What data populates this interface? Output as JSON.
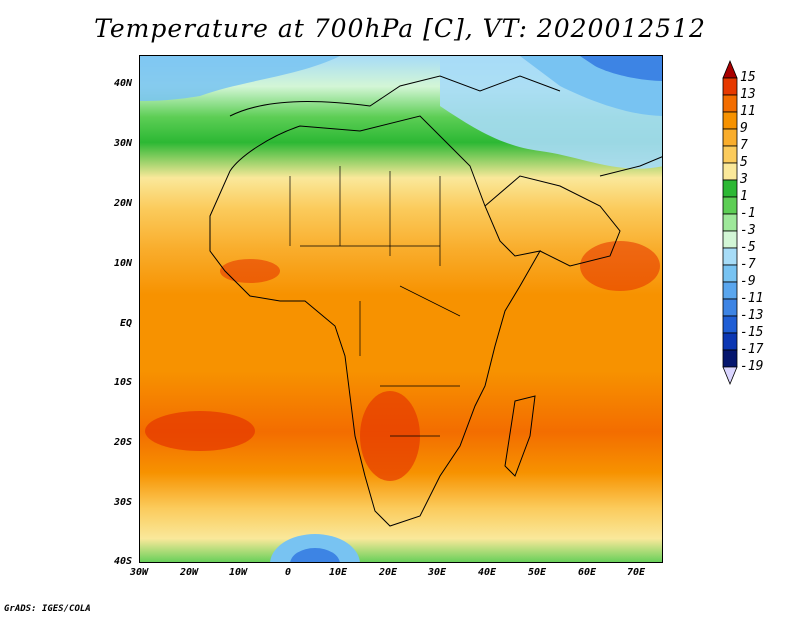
{
  "title": "Temperature at 700hPa [C], VT: 2020012512",
  "footer": "GrADS: IGES/COLA",
  "map": {
    "region": "Africa",
    "projection": "latlon",
    "lon_range": [
      "30W",
      "75E"
    ],
    "lat_range": [
      "40S",
      "45N"
    ],
    "y_ticks": [
      "40N",
      "30N",
      "20N",
      "10N",
      "EQ",
      "10S",
      "20S",
      "30S",
      "40S"
    ],
    "x_ticks": [
      "30W",
      "20W",
      "10W",
      "0",
      "10E",
      "20E",
      "30E",
      "40E",
      "50E",
      "60E",
      "70E"
    ]
  },
  "colorbar": {
    "labels": [
      "15",
      "13",
      "11",
      "9",
      "7",
      "5",
      "3",
      "1",
      "-1",
      "-3",
      "-5",
      "-7",
      "-9",
      "-11",
      "-13",
      "-15",
      "-17",
      "-19"
    ],
    "colors": [
      "#a80000",
      "#e63900",
      "#f36d00",
      "#f79200",
      "#f9ad2c",
      "#fbcb5c",
      "#fae89a",
      "#2cb834",
      "#5dce55",
      "#9ee89a",
      "#d3f6d6",
      "#a7dcf7",
      "#78c3f2",
      "#5aa6ee",
      "#3d84e4",
      "#1f5ed5",
      "#0c37b3",
      "#05166e",
      "#dad5ff"
    ]
  },
  "chart_data": {
    "type": "heatmap",
    "title": "Temperature at 700hPa [C], VT: 2020012512",
    "variable": "Temperature at 700hPa",
    "units": "C",
    "valid_time": "2020012512",
    "x_range": [
      -30,
      75
    ],
    "y_range": [
      -40,
      45
    ],
    "contour_levels": [
      -19,
      -17,
      -15,
      -13,
      -11,
      -9,
      -7,
      -5,
      -3,
      -1,
      1,
      3,
      5,
      7,
      9,
      11,
      13,
      15
    ],
    "approx_values_by_lat": [
      {
        "lat": 42,
        "value": -3
      },
      {
        "lat": 35,
        "value": 1
      },
      {
        "lat": 28,
        "value": 3
      },
      {
        "lat": 22,
        "value": 7
      },
      {
        "lat": 10,
        "value": 11
      },
      {
        "lat": 0,
        "value": 11
      },
      {
        "lat": -18,
        "value": 12
      },
      {
        "lat": -30,
        "value": 9
      },
      {
        "lat": -38,
        "value": 3
      }
    ]
  }
}
